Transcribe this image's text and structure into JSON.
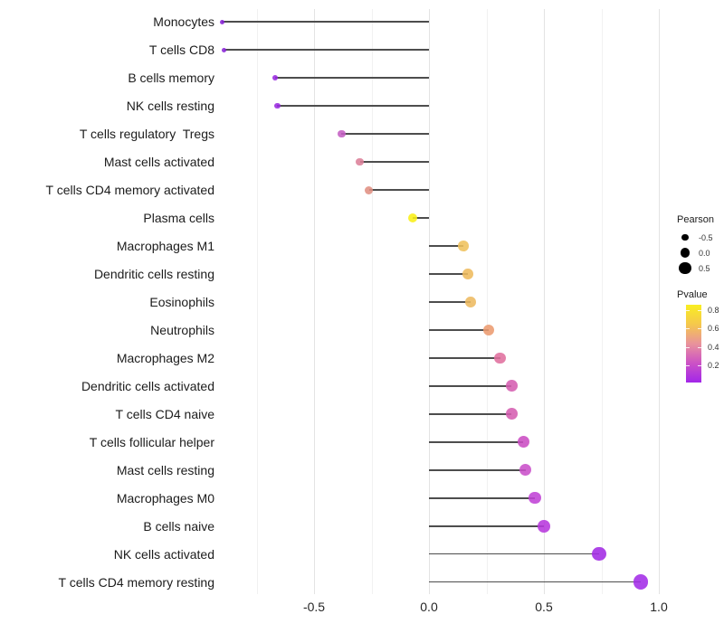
{
  "chart_data": {
    "type": "scatter",
    "variant": "horizontal-lollipop",
    "title": "",
    "xlabel": "",
    "ylabel": "",
    "xlim": [
      -0.92,
      1.25
    ],
    "grid": "on",
    "legend_position": "right",
    "categories": [
      "Monocytes",
      "T cells CD8",
      "B cells memory",
      "NK cells resting",
      "T cells regulatory  Tregs",
      "Mast cells activated",
      "T cells CD4 memory activated",
      "Plasma cells",
      "Macrophages M1",
      "Dendritic cells resting",
      "Eosinophils",
      "Neutrophils",
      "Macrophages M2",
      "Dendritic cells activated",
      "T cells CD4 naive",
      "T cells follicular helper",
      "Mast cells resting",
      "Macrophages M0",
      "B cells naive",
      "NK cells activated",
      "T cells CD4 memory resting"
    ],
    "rows": [
      {
        "label": "Monocytes",
        "pearson": -0.9,
        "pvalue": 0.02,
        "color": "#8a24d8"
      },
      {
        "label": "T cells CD8",
        "pearson": -0.89,
        "pvalue": 0.02,
        "color": "#8a24d8"
      },
      {
        "label": "B cells memory",
        "pearson": -0.67,
        "pvalue": 0.07,
        "color": "#9929e0"
      },
      {
        "label": "NK cells resting",
        "pearson": -0.66,
        "pvalue": 0.07,
        "color": "#9a2ae0"
      },
      {
        "label": "T cells regulatory  Tregs",
        "pearson": -0.38,
        "pvalue": 0.33,
        "color": "#c45ec3"
      },
      {
        "label": "Mast cells activated",
        "pearson": -0.3,
        "pvalue": 0.46,
        "color": "#dc7f99"
      },
      {
        "label": "T cells CD4 memory activated",
        "pearson": -0.26,
        "pvalue": 0.52,
        "color": "#e08f82"
      },
      {
        "label": "Plasma cells",
        "pearson": -0.07,
        "pvalue": 0.85,
        "color": "#f9ef17"
      },
      {
        "label": "Macrophages M1",
        "pearson": 0.15,
        "pvalue": 0.63,
        "color": "#efc25c"
      },
      {
        "label": "Dendritic cells resting",
        "pearson": 0.17,
        "pvalue": 0.61,
        "color": "#eebb5d"
      },
      {
        "label": "Eosinophils",
        "pearson": 0.18,
        "pvalue": 0.61,
        "color": "#edba60"
      },
      {
        "label": "Neutrophils",
        "pearson": 0.26,
        "pvalue": 0.52,
        "color": "#ec9b70"
      },
      {
        "label": "Macrophages M2",
        "pearson": 0.31,
        "pvalue": 0.42,
        "color": "#e0709e"
      },
      {
        "label": "Dendritic cells activated",
        "pearson": 0.36,
        "pvalue": 0.35,
        "color": "#d55db1"
      },
      {
        "label": "T cells CD4 naive",
        "pearson": 0.36,
        "pvalue": 0.35,
        "color": "#d55db1"
      },
      {
        "label": "T cells follicular helper",
        "pearson": 0.41,
        "pvalue": 0.29,
        "color": "#cb4cc3"
      },
      {
        "label": "Mast cells resting",
        "pearson": 0.42,
        "pvalue": 0.28,
        "color": "#ca50ca"
      },
      {
        "label": "Macrophages M0",
        "pearson": 0.46,
        "pvalue": 0.22,
        "color": "#c042d6"
      },
      {
        "label": "B cells naive",
        "pearson": 0.5,
        "pvalue": 0.19,
        "color": "#b738dd"
      },
      {
        "label": "NK cells activated",
        "pearson": 0.74,
        "pvalue": 0.1,
        "color": "#a22ae4"
      },
      {
        "label": "T cells CD4 memory resting",
        "pearson": 0.92,
        "pvalue": 0.06,
        "color": "#a32ce7"
      }
    ],
    "x_axis": {
      "ticks": [
        {
          "label": "-0.5",
          "value": -0.5
        },
        {
          "label": "0.0",
          "value": 0.0
        },
        {
          "label": "0.5",
          "value": 0.5
        },
        {
          "label": "1.0",
          "value": 1.0
        }
      ],
      "major_gridlines": [
        -0.5,
        0.0,
        0.5,
        1.0
      ],
      "minor_gridlines": [
        -0.75,
        -0.25,
        0.25,
        0.75
      ]
    },
    "legend_size": {
      "title": "Pearson",
      "entries": [
        {
          "label": "-0.5",
          "value": -0.5
        },
        {
          "label": "0.0",
          "value": 0.0
        },
        {
          "label": "0.5",
          "value": 0.5
        }
      ]
    },
    "legend_color": {
      "title": "Pvalue",
      "ticks": [
        {
          "label": "0.8",
          "value": 0.8
        },
        {
          "label": "0.6",
          "value": 0.6
        },
        {
          "label": "0.4",
          "value": 0.4
        },
        {
          "label": "0.2",
          "value": 0.2
        }
      ],
      "domain_top": 0.855,
      "domain_bottom": 0.02,
      "gradient": [
        "#f9ee21",
        "#f5c84c",
        "#e9939b",
        "#cc52c5",
        "#a226e9"
      ]
    },
    "colors": {
      "stem": "#4d4d4d",
      "grid_major": "#e3e3e3",
      "grid_minor": "#f1f1f1",
      "legend_dot": "#000000"
    }
  }
}
